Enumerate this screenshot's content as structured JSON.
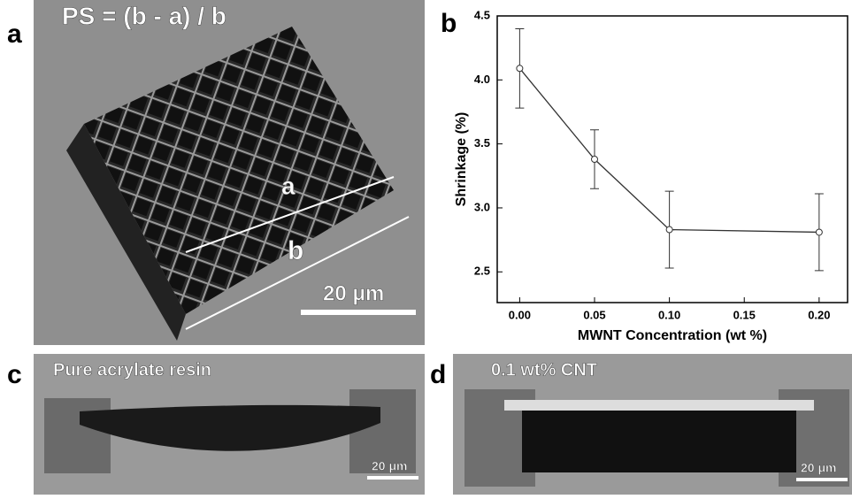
{
  "panels": {
    "a": {
      "label": "a",
      "formula": "PS = (b - a) / b",
      "mark_a": "a",
      "mark_b": "b",
      "scale": "20 μm"
    },
    "b": {
      "label": "b"
    },
    "c": {
      "label": "c",
      "caption": "Pure acrylate resin",
      "scale": "20 μm"
    },
    "d": {
      "label": "d",
      "caption": "0.1 wt% CNT",
      "scale": "20 μm"
    }
  },
  "chart_data": {
    "type": "line",
    "xlabel": "MWNT Concentration (wt %)",
    "ylabel": "Shrinkage (%)",
    "x": [
      0,
      0.05,
      0.1,
      0.2
    ],
    "values": [
      4.09,
      3.38,
      2.83,
      2.81
    ],
    "errors": [
      0.31,
      0.23,
      0.3,
      0.3
    ],
    "color": "#333333",
    "xlim": [
      -0.015,
      0.219
    ],
    "ylim": [
      2.26,
      4.5
    ],
    "xticks": [
      {
        "value": 0,
        "label": "0.00"
      },
      {
        "value": 0.05,
        "label": "0.05"
      },
      {
        "value": 0.1,
        "label": "0.10"
      },
      {
        "value": 0.15,
        "label": "0.15"
      },
      {
        "value": 0.2,
        "label": "0.20"
      }
    ],
    "yticks": [
      {
        "value": 2.5,
        "label": "2.5"
      },
      {
        "value": 3,
        "label": "3.0"
      },
      {
        "value": 3.5,
        "label": "3.5"
      },
      {
        "value": 4,
        "label": "4.0"
      },
      {
        "value": 4.5,
        "label": "4.5"
      }
    ]
  }
}
